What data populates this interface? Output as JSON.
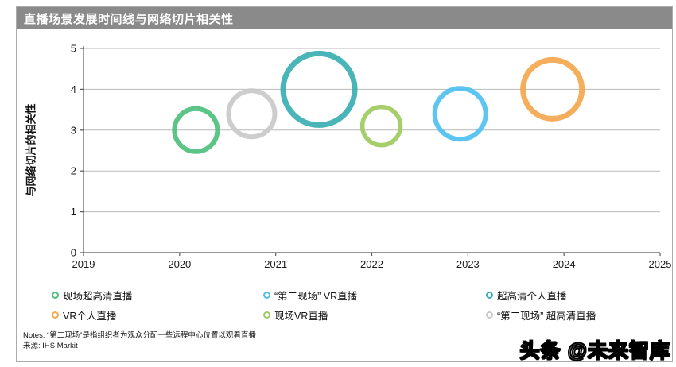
{
  "panel": {
    "title": "直播场景发展时间线与网络切片相关性"
  },
  "notes": {
    "line1": "Notes: “第二现场”是指组织者为观众分配一些远程中心位置以观看直播",
    "line2": "来源: IHS Markit"
  },
  "watermark": "头条 @未来智库",
  "colors": {
    "title_bar_bg": "#8a8a8a",
    "panel_border": "#ababab",
    "gridline": "#b9b9b9",
    "axis": "#595959",
    "tick_label": "#1a1a1a"
  },
  "chart_data": {
    "type": "scatter",
    "subtype": "bubble-rings",
    "title": "直播场景发展时间线与网络切片相关性",
    "xlabel": "",
    "ylabel": "与网络切片的相关性",
    "xlim": [
      2019,
      2025
    ],
    "ylim": [
      0,
      5
    ],
    "x_ticks": [
      2019,
      2020,
      2021,
      2022,
      2023,
      2024,
      2025
    ],
    "y_ticks": [
      0,
      1,
      2,
      3,
      4,
      5
    ],
    "grid": "horizontal",
    "legend_position": "bottom",
    "series": [
      {
        "name": "现场超高清直播",
        "x": 2020.17,
        "y": 3.0,
        "radius_px": 27,
        "stroke_px": 6,
        "color": "#4ebf7c"
      },
      {
        "name": "“第二现场”超高清直播",
        "x": 2020.75,
        "y": 3.4,
        "radius_px": 29,
        "stroke_px": 6,
        "color": "#c9c9c9"
      },
      {
        "name": "超高清个人直播",
        "x": 2021.45,
        "y": 4.0,
        "radius_px": 45,
        "stroke_px": 7,
        "color": "#3bafb2"
      },
      {
        "name": "现场VR直播",
        "x": 2022.1,
        "y": 3.1,
        "radius_px": 24,
        "stroke_px": 5.5,
        "color": "#9ecb5f"
      },
      {
        "name": "“第二现场”VR直播",
        "x": 2022.92,
        "y": 3.4,
        "radius_px": 32,
        "stroke_px": 6,
        "color": "#4ec0f0"
      },
      {
        "name": "VR个人直播",
        "x": 2023.88,
        "y": 4.0,
        "radius_px": 37,
        "stroke_px": 7,
        "color": "#f4a74d"
      }
    ],
    "legend": [
      {
        "label": "现场超高清直播",
        "color": "#4ebf7c"
      },
      {
        "label": "“第二现场” VR直播",
        "color": "#4ec0f0"
      },
      {
        "label": "超高清个人直播",
        "color": "#3bafb2"
      },
      {
        "label": "VR个人直播",
        "color": "#f4a74d"
      },
      {
        "label": "现场VR直播",
        "color": "#9ecb5f"
      },
      {
        "label": "“第二现场” 超高清直播",
        "color": "#c9c9c9"
      }
    ]
  }
}
